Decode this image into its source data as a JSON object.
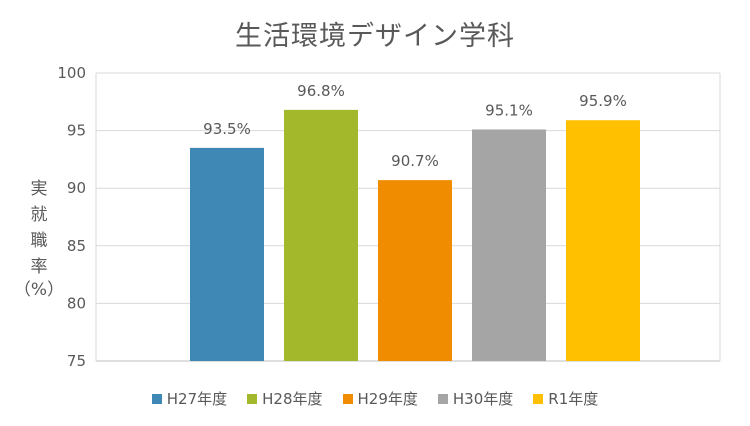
{
  "chart_data": {
    "type": "bar",
    "title": "生活環境デザイン学科",
    "ylabel": "実就職率",
    "ylabel_unit": "（%）",
    "xlabel": "",
    "categories": [
      "H27年度",
      "H28年度",
      "H29年度",
      "H30年度",
      "R1年度"
    ],
    "values": [
      93.5,
      96.8,
      90.7,
      95.1,
      95.9
    ],
    "data_labels": [
      "93.5%",
      "96.8%",
      "90.7%",
      "95.1%",
      "95.9%"
    ],
    "colors": [
      "#3f88b5",
      "#a4b82c",
      "#f08c00",
      "#a5a5a5",
      "#ffc000"
    ],
    "ylim": [
      75,
      100
    ],
    "yticks": [
      75,
      80,
      85,
      90,
      95,
      100
    ],
    "grid": true,
    "legend": "bottom"
  }
}
